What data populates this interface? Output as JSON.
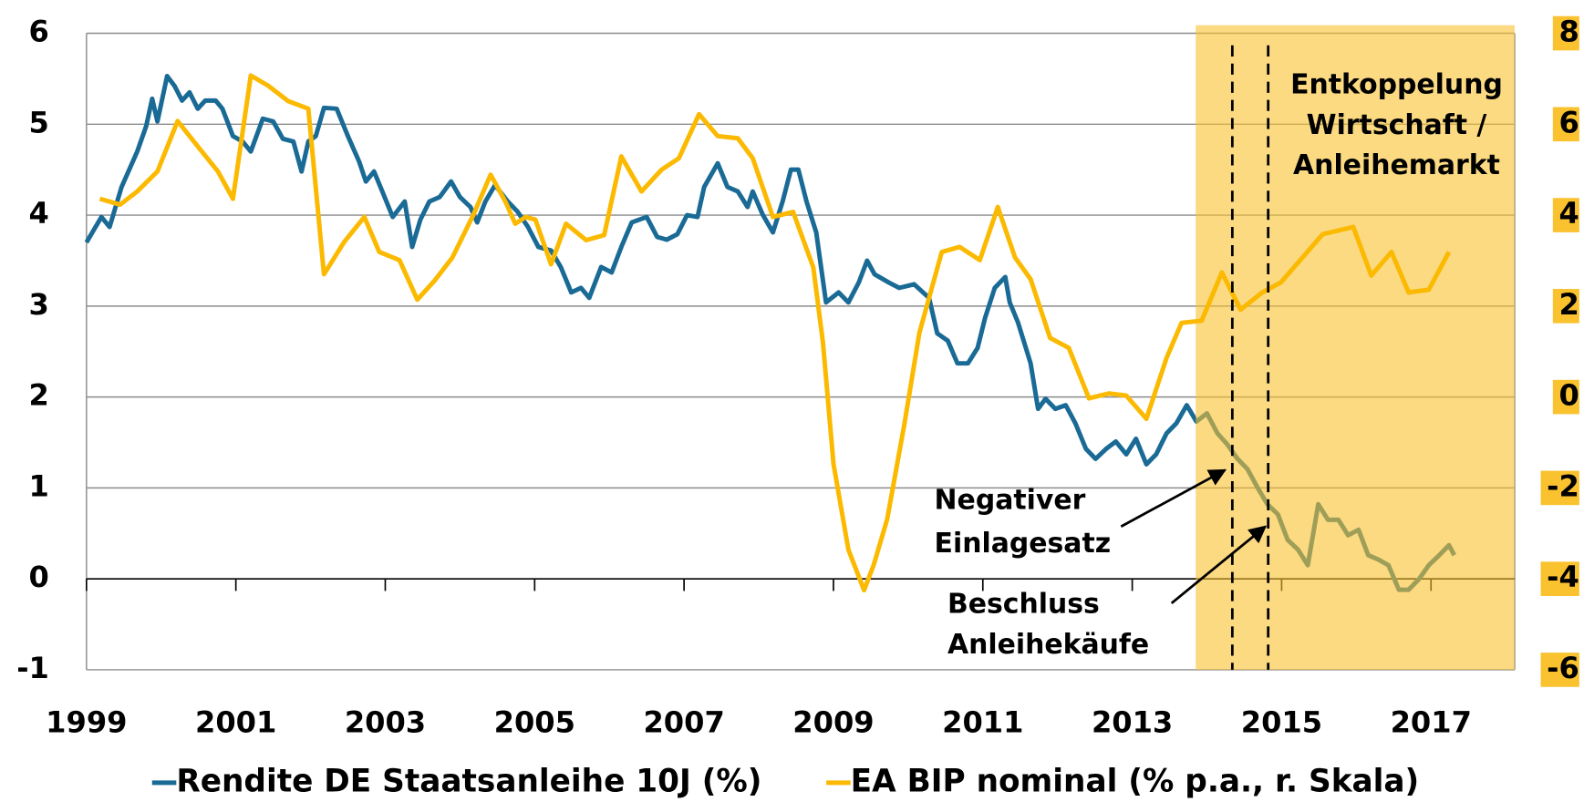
{
  "chart_data": {
    "type": "line",
    "xlim": [
      1999,
      2018.12
    ],
    "xticks": [
      1999,
      2001,
      2003,
      2005,
      2007,
      2009,
      2011,
      2013,
      2015,
      2017
    ],
    "ylim": [
      -1,
      6
    ],
    "yticks": [
      -1,
      0,
      1,
      2,
      3,
      4,
      5,
      6
    ],
    "y2lim": [
      -6,
      8
    ],
    "y2ticks": [
      -6,
      -4,
      -2,
      0,
      2,
      4,
      6,
      8
    ],
    "grid": true,
    "legend": "bottom",
    "highlight_color": "#f9c22e",
    "series": [
      {
        "name": "Rendite DE Staatsanleihe 10J (%)",
        "color": "#1a6a96",
        "axis": "y",
        "x": [
          1999.0,
          1999.2,
          1999.31,
          1999.47,
          1999.68,
          1999.8,
          1999.88,
          1999.95,
          2000.01,
          2000.08,
          2000.18,
          2000.28,
          2000.38,
          2000.49,
          2000.59,
          2000.73,
          2000.82,
          2000.96,
          2001.09,
          2001.2,
          2001.36,
          2001.5,
          2001.63,
          2001.77,
          2001.88,
          2001.97,
          2002.07,
          2002.18,
          2002.35,
          2002.5,
          2002.65,
          2002.74,
          2002.85,
          2002.96,
          2003.1,
          2003.26,
          2003.36,
          2003.47,
          2003.59,
          2003.73,
          2003.88,
          2004.0,
          2004.14,
          2004.23,
          2004.34,
          2004.47,
          2004.64,
          2004.77,
          2004.91,
          2005.05,
          2005.22,
          2005.35,
          2005.49,
          2005.62,
          2005.73,
          2005.89,
          2006.03,
          2006.16,
          2006.3,
          2006.5,
          2006.64,
          2006.77,
          2006.91,
          2007.04,
          2007.18,
          2007.27,
          2007.45,
          2007.58,
          2007.72,
          2007.85,
          2007.92,
          2008.05,
          2008.19,
          2008.32,
          2008.43,
          2008.53,
          2008.64,
          2008.77,
          2008.9,
          2009.07,
          2009.2,
          2009.34,
          2009.45,
          2009.55,
          2009.74,
          2009.88,
          2010.08,
          2010.28,
          2010.39,
          2010.53,
          2010.66,
          2010.8,
          2010.93,
          2011.03,
          2011.16,
          2011.3,
          2011.36,
          2011.47,
          2011.64,
          2011.74,
          2011.84,
          2011.97,
          2012.11,
          2012.24,
          2012.38,
          2012.51,
          2012.65,
          2012.78,
          2012.92,
          2013.05,
          2013.19,
          2013.32,
          2013.46,
          2013.59,
          2013.73,
          2013.86,
          2014.0,
          2014.14,
          2014.27,
          2014.41,
          2014.54,
          2014.68,
          2014.81,
          2014.95,
          2015.08,
          2015.22,
          2015.35,
          2015.49,
          2015.62,
          2015.76,
          2015.89,
          2016.03,
          2016.16,
          2016.3,
          2016.43,
          2016.57,
          2016.7,
          2016.84,
          2016.97,
          2017.11,
          2017.24,
          2017.31
        ],
        "values": [
          3.7,
          3.98,
          3.87,
          4.31,
          4.7,
          4.98,
          5.28,
          5.03,
          5.26,
          5.53,
          5.42,
          5.26,
          5.35,
          5.17,
          5.26,
          5.26,
          5.17,
          4.87,
          4.81,
          4.7,
          5.06,
          5.03,
          4.84,
          4.81,
          4.48,
          4.81,
          4.87,
          5.18,
          5.17,
          4.87,
          4.59,
          4.37,
          4.48,
          4.26,
          3.98,
          4.15,
          3.65,
          3.95,
          4.15,
          4.2,
          4.37,
          4.2,
          4.09,
          3.92,
          4.15,
          4.33,
          4.15,
          4.04,
          3.87,
          3.65,
          3.61,
          3.43,
          3.15,
          3.2,
          3.09,
          3.43,
          3.37,
          3.65,
          3.92,
          3.98,
          3.76,
          3.73,
          3.79,
          4.0,
          3.98,
          4.31,
          4.57,
          4.31,
          4.26,
          4.09,
          4.26,
          4.01,
          3.81,
          4.15,
          4.5,
          4.5,
          4.15,
          3.81,
          3.04,
          3.15,
          3.04,
          3.26,
          3.5,
          3.35,
          3.26,
          3.2,
          3.24,
          3.09,
          2.7,
          2.62,
          2.37,
          2.37,
          2.54,
          2.87,
          3.2,
          3.32,
          3.04,
          2.82,
          2.37,
          1.87,
          1.98,
          1.87,
          1.91,
          1.71,
          1.43,
          1.32,
          1.43,
          1.51,
          1.37,
          1.54,
          1.26,
          1.37,
          1.6,
          1.71,
          1.91,
          1.73,
          1.82,
          1.6,
          1.48,
          1.32,
          1.21,
          1.0,
          0.82,
          0.71,
          0.43,
          0.32,
          0.15,
          0.82,
          0.65,
          0.65,
          0.48,
          0.54,
          0.26,
          0.21,
          0.15,
          -0.12,
          -0.12,
          0.0,
          0.15,
          0.26,
          0.37,
          0.26
        ]
      },
      {
        "name": "EA BIP nominal (% p.a., r. Skala)",
        "color": "#fbb900",
        "axis": "y2",
        "x": [
          1999.18,
          1999.45,
          1999.68,
          1999.95,
          2000.22,
          2000.49,
          2000.76,
          2000.96,
          2001.2,
          2001.43,
          2001.7,
          2001.97,
          2002.18,
          2002.45,
          2002.72,
          2002.92,
          2003.19,
          2003.43,
          2003.66,
          2003.9,
          2004.18,
          2004.41,
          2004.61,
          2004.74,
          2004.88,
          2005.01,
          2005.22,
          2005.42,
          2005.69,
          2005.93,
          2006.16,
          2006.43,
          2006.7,
          2006.93,
          2007.2,
          2007.45,
          2007.72,
          2007.92,
          2008.19,
          2008.46,
          2008.73,
          2008.86,
          2009.0,
          2009.2,
          2009.41,
          2009.54,
          2009.72,
          2009.95,
          2010.15,
          2010.45,
          2010.69,
          2010.96,
          2011.2,
          2011.43,
          2011.64,
          2011.9,
          2012.15,
          2012.42,
          2012.69,
          2012.92,
          2013.19,
          2013.46,
          2013.66,
          2013.93,
          2014.2,
          2014.45,
          2014.74,
          2014.99,
          2015.28,
          2015.55,
          2015.96,
          2016.2,
          2016.47,
          2016.7,
          2016.97,
          2017.24
        ],
        "values": [
          4.36,
          4.23,
          4.52,
          4.96,
          6.07,
          5.51,
          4.96,
          4.36,
          7.07,
          6.85,
          6.51,
          6.34,
          2.7,
          3.41,
          3.96,
          3.19,
          3.01,
          2.14,
          2.56,
          3.07,
          4.01,
          4.89,
          4.29,
          3.81,
          3.96,
          3.9,
          2.92,
          3.81,
          3.45,
          3.56,
          5.29,
          4.52,
          5.0,
          5.25,
          6.22,
          5.74,
          5.69,
          5.25,
          3.96,
          4.07,
          2.85,
          1.19,
          -1.47,
          -3.36,
          -4.25,
          -3.69,
          -2.69,
          -0.59,
          1.41,
          3.19,
          3.3,
          3.01,
          4.18,
          3.07,
          2.59,
          1.3,
          1.08,
          -0.03,
          0.08,
          0.03,
          -0.48,
          0.86,
          1.63,
          1.68,
          2.74,
          1.92,
          2.3,
          2.52,
          3.07,
          3.58,
          3.74,
          2.67,
          3.19,
          2.3,
          2.36,
          3.19
        ]
      }
    ],
    "annotations": [
      {
        "lines": [
          "Entkoppelung",
          "Wirtschaft /",
          "Anleihemarkt"
        ],
        "x": [
          2013.85,
          2018.12
        ]
      },
      {
        "lines": [
          "Negativer",
          "Einlagesatz"
        ],
        "x": 2014.34
      },
      {
        "lines": [
          "Beschluss",
          "Anleihekäufe"
        ],
        "x": 2014.82
      }
    ]
  }
}
